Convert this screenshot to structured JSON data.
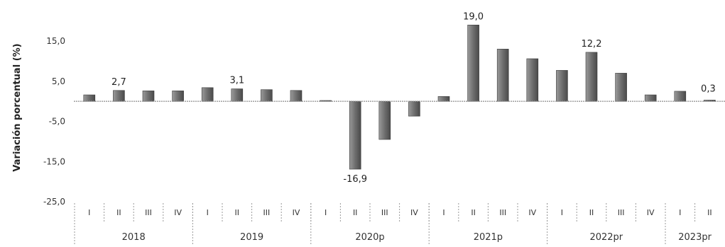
{
  "chart_data": {
    "type": "bar",
    "ylabel": "Variación porcentual (%)",
    "ylim": [
      -25,
      15
    ],
    "yticks": [
      "15,0",
      "5,0",
      "-5,0",
      "-15,0",
      "-25,0"
    ],
    "ytick_values": [
      15,
      5,
      -5,
      -15,
      -25
    ],
    "bar_color": "#6e6e6e",
    "grid": false,
    "categories": [
      "I",
      "II",
      "III",
      "IV",
      "I",
      "II",
      "III",
      "IV",
      "I",
      "II",
      "III",
      "IV",
      "I",
      "II",
      "III",
      "IV",
      "I",
      "II",
      "III",
      "IV",
      "I",
      "II"
    ],
    "years": [
      {
        "label": "2018",
        "quarters": 4
      },
      {
        "label": "2019",
        "quarters": 4
      },
      {
        "label": "2020p",
        "quarters": 4
      },
      {
        "label": "2021p",
        "quarters": 4
      },
      {
        "label": "2022pr",
        "quarters": 4
      },
      {
        "label": "2023pr",
        "quarters": 2
      }
    ],
    "values": [
      1.6,
      2.7,
      2.6,
      2.6,
      3.4,
      3.1,
      2.9,
      2.7,
      0.2,
      -16.9,
      -9.5,
      -3.7,
      1.2,
      19.0,
      13.0,
      10.6,
      7.7,
      12.2,
      7.0,
      1.6,
      2.5,
      0.3
    ],
    "data_labels": [
      {
        "index": 1,
        "text": "2,7"
      },
      {
        "index": 5,
        "text": "3,1"
      },
      {
        "index": 9,
        "text": "-16,9"
      },
      {
        "index": 13,
        "text": "19,0"
      },
      {
        "index": 17,
        "text": "12,2"
      },
      {
        "index": 21,
        "text": "0,3"
      }
    ]
  }
}
